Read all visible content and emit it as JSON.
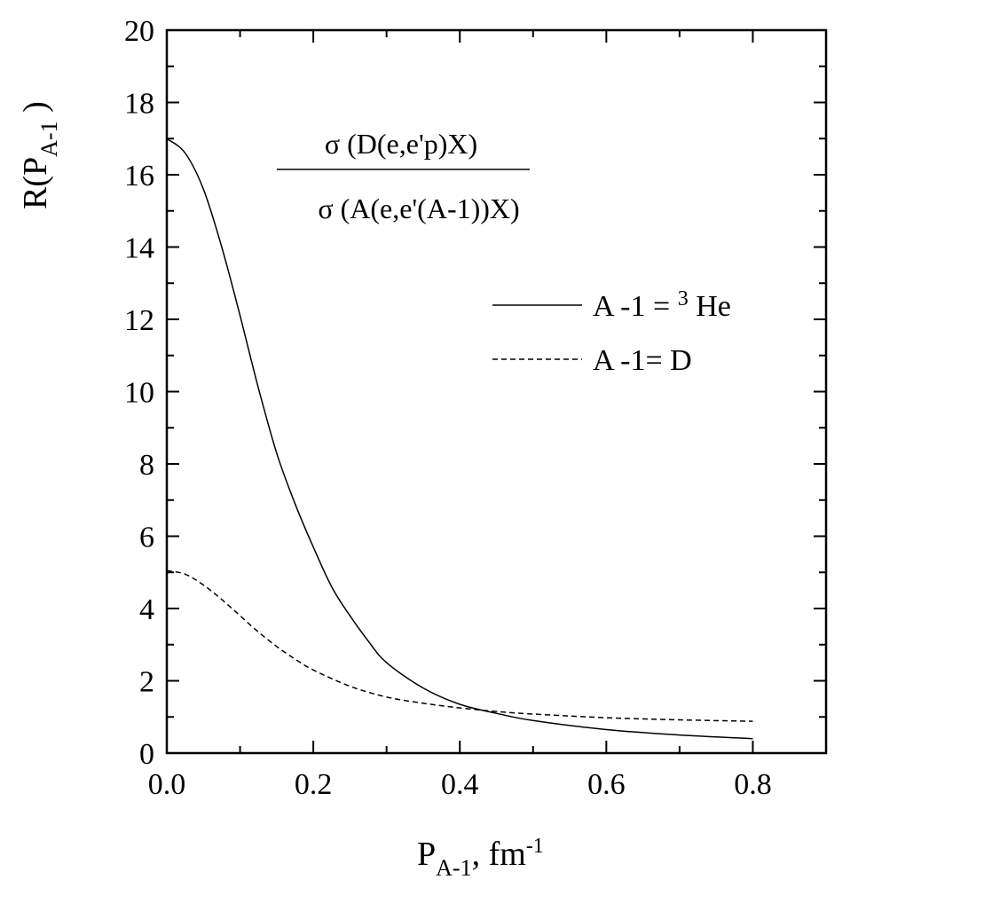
{
  "chart_data": {
    "type": "line",
    "xlim": [
      0,
      0.9
    ],
    "ylim": [
      0,
      20
    ],
    "x_ticks": [
      "0.0",
      "0.2",
      "0.4",
      "0.6",
      "0.8"
    ],
    "y_ticks": [
      "0",
      "2",
      "4",
      "6",
      "8",
      "10",
      "12",
      "14",
      "16",
      "18",
      "20"
    ],
    "xlabel": {
      "main": "P",
      "sub": "A-1",
      "rest": ", fm",
      "sup": "-1"
    },
    "ylabel": {
      "main": "R(P",
      "sub": "A-1",
      "rest": " )"
    },
    "annotation": {
      "numerator": "σ (D(e,e'p)X)",
      "denominator": "σ (A(e,e'(A-1))X)"
    },
    "legend_position": "right, mid-upper",
    "series": [
      {
        "name": "A -1 = ³ He",
        "legend": {
          "before": "A -1 = ",
          "sup": "3",
          "after": " He"
        },
        "style": "solid",
        "x": [
          0.0,
          0.025,
          0.05,
          0.075,
          0.1,
          0.125,
          0.15,
          0.175,
          0.2,
          0.225,
          0.25,
          0.275,
          0.3,
          0.35,
          0.4,
          0.45,
          0.5,
          0.6,
          0.7,
          0.8
        ],
        "y": [
          17.0,
          16.6,
          15.6,
          14.0,
          12.1,
          10.1,
          8.3,
          6.9,
          5.7,
          4.6,
          3.8,
          3.1,
          2.5,
          1.8,
          1.35,
          1.1,
          0.9,
          0.65,
          0.5,
          0.4
        ]
      },
      {
        "name": "A -1= D",
        "legend": {
          "before": "A -1= D"
        },
        "style": "dashed",
        "x": [
          0.0,
          0.025,
          0.05,
          0.075,
          0.1,
          0.125,
          0.15,
          0.175,
          0.2,
          0.25,
          0.3,
          0.35,
          0.4,
          0.45,
          0.5,
          0.6,
          0.7,
          0.8
        ],
        "y": [
          5.05,
          4.95,
          4.65,
          4.25,
          3.8,
          3.35,
          2.95,
          2.6,
          2.3,
          1.85,
          1.55,
          1.38,
          1.25,
          1.15,
          1.08,
          0.98,
          0.92,
          0.88
        ]
      }
    ]
  }
}
